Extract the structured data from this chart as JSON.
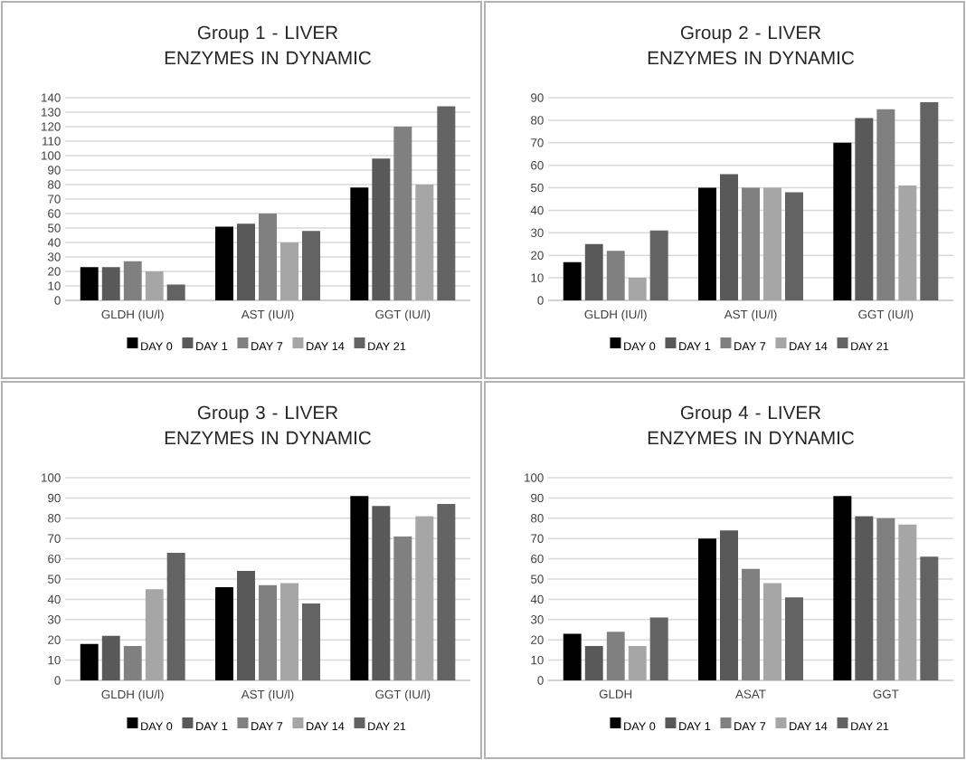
{
  "chart_data": [
    {
      "type": "bar",
      "title": "Group 1 - LIVER ENZYMES IN DYNAMIC",
      "categories": [
        "GLDH (IU/l)",
        "AST (IU/l)",
        "GGT (IU/l)"
      ],
      "series": [
        {
          "name": "DAY 0",
          "color": "#000000",
          "values": [
            23,
            51,
            78
          ]
        },
        {
          "name": "DAY 1",
          "color": "#595959",
          "values": [
            23,
            53,
            98
          ]
        },
        {
          "name": "DAY 7",
          "color": "#808080",
          "values": [
            27,
            60,
            120
          ]
        },
        {
          "name": "DAY 14",
          "color": "#a6a6a6",
          "values": [
            20,
            40,
            80
          ]
        },
        {
          "name": "DAY 21",
          "color": "#636363",
          "values": [
            11,
            48,
            134
          ]
        }
      ],
      "ylim": [
        0,
        140
      ],
      "yticks": [
        0,
        10,
        20,
        30,
        40,
        50,
        60,
        70,
        80,
        90,
        100,
        110,
        120,
        130,
        140
      ],
      "grid": "y",
      "legend": "bottom"
    },
    {
      "type": "bar",
      "title": "Group 2 - LIVER ENZYMES IN DYNAMIC",
      "categories": [
        "GLDH (IU/l)",
        "AST (IU/l)",
        "GGT (IU/l)"
      ],
      "series": [
        {
          "name": "DAY 0",
          "color": "#000000",
          "values": [
            17,
            50,
            70
          ]
        },
        {
          "name": "DAY 1",
          "color": "#595959",
          "values": [
            25,
            56,
            81
          ]
        },
        {
          "name": "DAY 7",
          "color": "#808080",
          "values": [
            22,
            50,
            85
          ]
        },
        {
          "name": "DAY 14",
          "color": "#a6a6a6",
          "values": [
            10,
            50,
            51
          ]
        },
        {
          "name": "DAY 21",
          "color": "#636363",
          "values": [
            31,
            48,
            88
          ]
        }
      ],
      "ylim": [
        0,
        90
      ],
      "yticks": [
        0,
        10,
        20,
        30,
        40,
        50,
        60,
        70,
        80,
        90
      ],
      "grid": "y",
      "legend": "bottom"
    },
    {
      "type": "bar",
      "title": "Group 3 - LIVER ENZYMES IN DYNAMIC",
      "categories": [
        "GLDH (IU/l)",
        "AST (IU/l)",
        "GGT (IU/l)"
      ],
      "series": [
        {
          "name": "DAY 0",
          "color": "#000000",
          "values": [
            18,
            46,
            91
          ]
        },
        {
          "name": "DAY 1",
          "color": "#595959",
          "values": [
            22,
            54,
            86
          ]
        },
        {
          "name": "DAY 7",
          "color": "#808080",
          "values": [
            17,
            47,
            71
          ]
        },
        {
          "name": "DAY 14",
          "color": "#a6a6a6",
          "values": [
            45,
            48,
            81
          ]
        },
        {
          "name": "DAY 21",
          "color": "#636363",
          "values": [
            63,
            38,
            87
          ]
        }
      ],
      "ylim": [
        0,
        100
      ],
      "yticks": [
        0,
        10,
        20,
        30,
        40,
        50,
        60,
        70,
        80,
        90,
        100
      ],
      "grid": "y",
      "legend": "bottom"
    },
    {
      "type": "bar",
      "title": "Group 4 - LIVER ENZYMES IN DYNAMIC",
      "categories": [
        "GLDH",
        "ASAT",
        "GGT"
      ],
      "series": [
        {
          "name": "DAY 0",
          "color": "#000000",
          "values": [
            23,
            70,
            91
          ]
        },
        {
          "name": "DAY 1",
          "color": "#595959",
          "values": [
            17,
            74,
            81
          ]
        },
        {
          "name": "DAY 7",
          "color": "#808080",
          "values": [
            24,
            55,
            80
          ]
        },
        {
          "name": "DAY 14",
          "color": "#a6a6a6",
          "values": [
            17,
            48,
            77
          ]
        },
        {
          "name": "DAY 21",
          "color": "#636363",
          "values": [
            31,
            41,
            61
          ]
        }
      ],
      "ylim": [
        0,
        100
      ],
      "yticks": [
        0,
        10,
        20,
        30,
        40,
        50,
        60,
        70,
        80,
        90,
        100
      ],
      "grid": "y",
      "legend": "bottom"
    }
  ]
}
